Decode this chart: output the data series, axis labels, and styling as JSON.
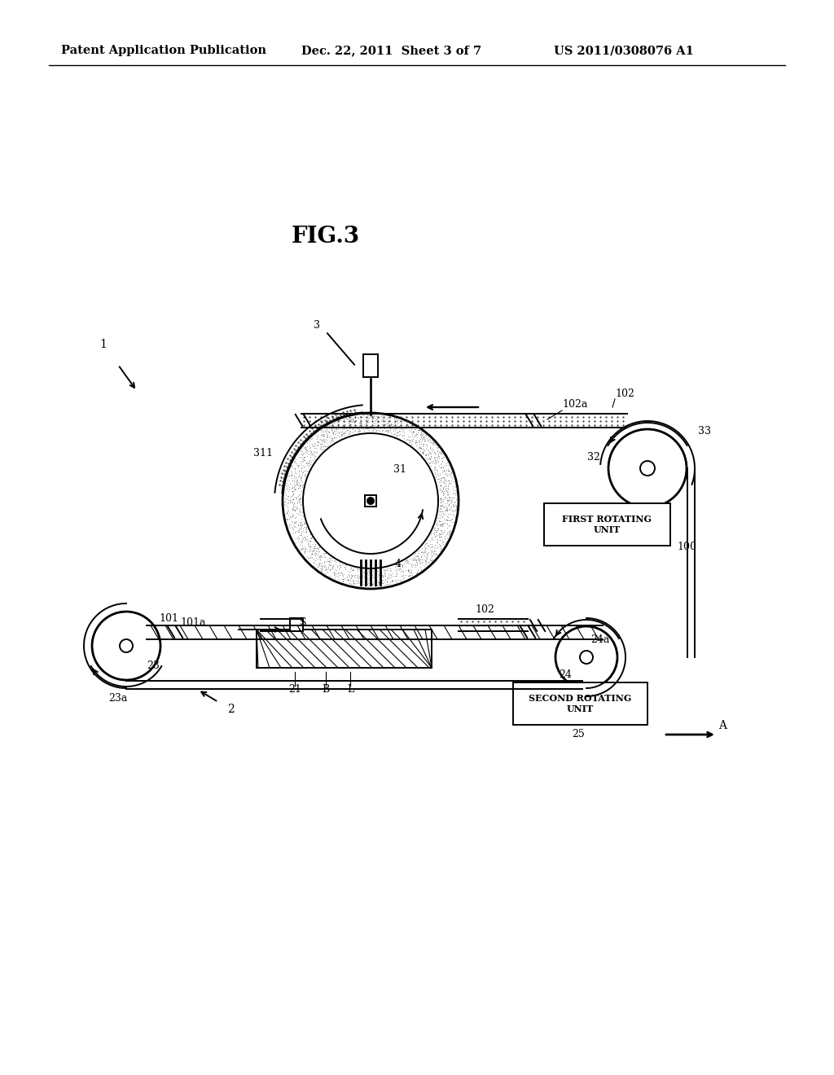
{
  "background_color": "#ffffff",
  "title": "FIG.3",
  "header_left": "Patent Application Publication",
  "header_center": "Dec. 22, 2011  Sheet 3 of 7",
  "header_right": "US 2011/0308076 A1"
}
